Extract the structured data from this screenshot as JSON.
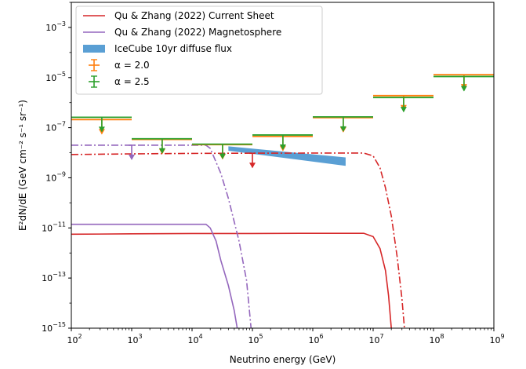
{
  "chart_data": {
    "type": "line",
    "xlabel": "Neutrino energy (GeV)",
    "ylabel": "E²dN/dE (GeV cm⁻² s⁻¹ sr⁻¹)",
    "x_scale": "log",
    "y_scale": "log",
    "xlim": [
      100.0,
      1000000000.0
    ],
    "ylim": [
      1e-15,
      0.01
    ],
    "x_ticks": [
      {
        "value": 100.0,
        "base": "10",
        "exp": "2"
      },
      {
        "value": 1000.0,
        "base": "10",
        "exp": "3"
      },
      {
        "value": 10000.0,
        "base": "10",
        "exp": "4"
      },
      {
        "value": 100000.0,
        "base": "10",
        "exp": "5"
      },
      {
        "value": 1000000.0,
        "base": "10",
        "exp": "6"
      },
      {
        "value": 10000000.0,
        "base": "10",
        "exp": "7"
      },
      {
        "value": 100000000.0,
        "base": "10",
        "exp": "8"
      },
      {
        "value": 1000000000.0,
        "base": "10",
        "exp": "9"
      }
    ],
    "y_ticks": [
      {
        "value": 1e-15,
        "base": "10",
        "exp": "−15"
      },
      {
        "value": 1e-13,
        "base": "10",
        "exp": "−13"
      },
      {
        "value": 1e-11,
        "base": "10",
        "exp": "−11"
      },
      {
        "value": 1e-09,
        "base": "10",
        "exp": "−9"
      },
      {
        "value": 1e-07,
        "base": "10",
        "exp": "−7"
      },
      {
        "value": 1e-05,
        "base": "10",
        "exp": "−5"
      },
      {
        "value": 0.001,
        "base": "10",
        "exp": "−3"
      }
    ],
    "legend": {
      "placement": "top-left",
      "entries": [
        {
          "label": "Qu & Zhang (2022) Current Sheet",
          "kind": "line",
          "color": "#d62728"
        },
        {
          "label": "Qu & Zhang (2022) Magnetosphere",
          "kind": "line",
          "color": "#9467bd"
        },
        {
          "label": "IceCube 10yr diffuse flux",
          "kind": "band",
          "color": "#5a9fd4"
        },
        {
          "label": "α = 2.0",
          "kind": "errorbar",
          "color": "#ff7f0e"
        },
        {
          "label": "α = 2.5",
          "kind": "errorbar",
          "color": "#2ca02c"
        }
      ]
    },
    "series": [
      {
        "name": "Qu & Zhang (2022) Current Sheet",
        "color": "#d62728",
        "style": "solid",
        "points": [
          [
            100,
            5.6e-12
          ],
          [
            1000,
            5.8e-12
          ],
          [
            10000.0,
            6e-12
          ],
          [
            100000.0,
            6e-12
          ],
          [
            1000000.0,
            6.1e-12
          ],
          [
            7000000.0,
            6.1e-12
          ],
          [
            10000000.0,
            4.5e-12
          ],
          [
            13000000.0,
            1.5e-12
          ],
          [
            16000000.0,
            2e-13
          ],
          [
            18000000.0,
            2e-14
          ],
          [
            20000000.0,
            1e-15
          ]
        ]
      },
      {
        "name": "Qu & Zhang (2022) Current Sheet",
        "color": "#d62728",
        "style": "dashdot",
        "points": [
          [
            100,
            8.5e-09
          ],
          [
            1000,
            9e-09
          ],
          [
            10000.0,
            9.4e-09
          ],
          [
            100000.0,
            9.6e-09
          ],
          [
            1000000.0,
            9.7e-09
          ],
          [
            7000000.0,
            9.7e-09
          ],
          [
            10000000.0,
            7.5e-09
          ],
          [
            13000000.0,
            2.5e-09
          ],
          [
            16000000.0,
            4e-10
          ],
          [
            20000000.0,
            3e-11
          ],
          [
            25000000.0,
            7e-13
          ],
          [
            30000000.0,
            1.5e-14
          ],
          [
            33000000.0,
            1e-15
          ]
        ]
      },
      {
        "name": "Qu & Zhang (2022) Magnetosphere",
        "color": "#9467bd",
        "style": "solid",
        "points": [
          [
            100,
            1.4e-11
          ],
          [
            1000,
            1.4e-11
          ],
          [
            10000.0,
            1.4e-11
          ],
          [
            17000.0,
            1.4e-11
          ],
          [
            20000.0,
            1e-11
          ],
          [
            25000.0,
            3e-12
          ],
          [
            30000.0,
            5e-13
          ],
          [
            40000.0,
            5e-14
          ],
          [
            50000.0,
            5e-15
          ],
          [
            56000.0,
            1e-15
          ]
        ]
      },
      {
        "name": "Qu & Zhang (2022) Magnetosphere",
        "color": "#9467bd",
        "style": "dashdot",
        "points": [
          [
            100,
            2e-08
          ],
          [
            1000,
            2e-08
          ],
          [
            10000.0,
            2e-08
          ],
          [
            17000.0,
            2e-08
          ],
          [
            20000.0,
            1.5e-08
          ],
          [
            30000.0,
            1.5e-09
          ],
          [
            40000.0,
            1.5e-10
          ],
          [
            60000.0,
            3e-12
          ],
          [
            80000.0,
            8e-14
          ],
          [
            95000.0,
            1e-15
          ]
        ]
      }
    ],
    "band": {
      "name": "IceCube 10yr diffuse flux",
      "color": "#5a9fd4",
      "points": [
        [
          40000.0,
          1.8e-08,
          1.2e-08
        ],
        [
          3500000.0,
          6.5e-09,
          3e-09
        ]
      ]
    },
    "upper_limits": [
      {
        "series": "α = 2.0",
        "color": "#ff7f0e",
        "points": [
          [
            320.0,
            2.1e-07,
            100.0,
            1000.0
          ],
          [
            3200.0,
            3.4e-08,
            1000.0,
            10000.0
          ],
          [
            32000.0,
            2.1e-08,
            10000.0,
            100000.0
          ],
          [
            320000.0,
            4.5e-08,
            100000.0,
            1000000.0
          ],
          [
            3200000.0,
            2.5e-07,
            1000000.0,
            10000000.0
          ],
          [
            32000000.0,
            1.9e-06,
            10000000.0,
            100000000.0
          ],
          [
            320000000.0,
            1.3e-05,
            100000000.0,
            1000000000.0
          ]
        ]
      },
      {
        "series": "α = 2.5",
        "color": "#2ca02c",
        "points": [
          [
            320.0,
            2.6e-07,
            100.0,
            1000.0
          ],
          [
            3200.0,
            3.6e-08,
            1000.0,
            10000.0
          ],
          [
            32000.0,
            2.2e-08,
            10000.0,
            100000.0
          ],
          [
            320000.0,
            5.1e-08,
            100000.0,
            1000000.0
          ],
          [
            3200000.0,
            2.7e-07,
            1000000.0,
            10000000.0
          ],
          [
            32000000.0,
            1.6e-06,
            10000000.0,
            100000000.0
          ],
          [
            320000000.0,
            1.1e-05,
            100000000.0,
            1000000000.0
          ]
        ]
      },
      {
        "series": "Qu & Zhang (2022) Current Sheet",
        "color": "#d62728",
        "points": [
          [
            100000.0,
            9.5e-09
          ]
        ]
      },
      {
        "series": "Qu & Zhang (2022) Magnetosphere",
        "color": "#9467bd",
        "points": [
          [
            1000.0,
            2e-08
          ]
        ]
      }
    ]
  }
}
